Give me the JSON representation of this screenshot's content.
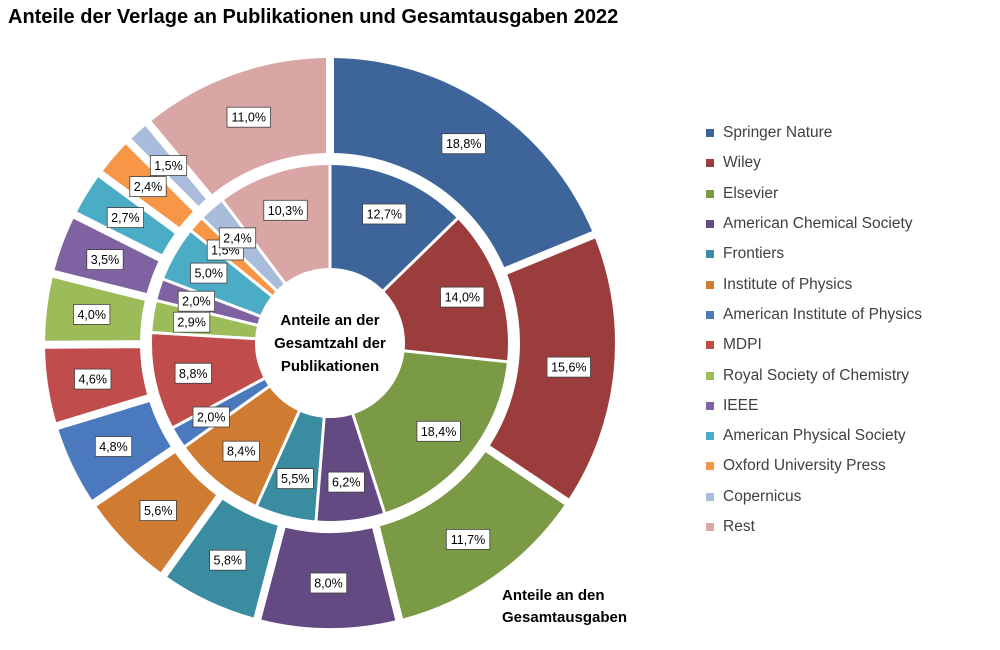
{
  "chart_data": {
    "type": "donut",
    "title": "Anteile der Verlage an Publikationen und Gesamtausgaben 2022",
    "categories": [
      "Springer Nature",
      "Wiley",
      "Elsevier",
      "American Chemical Society",
      "Frontiers",
      "Institute of Physics",
      "American Institute of Physics",
      "MDPI",
      "Royal Society of Chemistry",
      "IEEE",
      "American Physical Society",
      "Oxford University Press",
      "Copernicus",
      "Rest"
    ],
    "colors": [
      "#3e6599",
      "#9b3d3c",
      "#7a9a45",
      "#644a83",
      "#3a8ca1",
      "#d07b32",
      "#4a79bd",
      "#c04c4b",
      "#9cbc59",
      "#7f62a2",
      "#4bacc6",
      "#f79646",
      "#a9bcdb",
      "#d9a5a5"
    ],
    "series": [
      {
        "ring": "inner",
        "values": [
          12.7,
          14.0,
          18.4,
          6.2,
          5.5,
          8.4,
          2.0,
          8.8,
          2.9,
          2.0,
          5.0,
          1.5,
          2.4,
          10.3
        ],
        "labels": [
          "12,7%",
          "14,0%",
          "18,4%",
          "6,2%",
          "5,5%",
          "8,4%",
          "2,0%",
          "8,8%",
          "2,9%",
          "2,0%",
          "5,0%",
          "1,5%",
          "2,4%",
          "10,3%"
        ]
      },
      {
        "ring": "outer",
        "values": [
          18.8,
          15.6,
          11.7,
          8.0,
          5.8,
          5.6,
          4.8,
          4.6,
          4.0,
          3.5,
          2.7,
          2.4,
          1.5,
          11.0
        ],
        "labels": [
          "18,8%",
          "15,6%",
          "11,7%",
          "8,0%",
          "5,8%",
          "5,6%",
          "4,8%",
          "4,6%",
          "4,0%",
          "3,5%",
          "2,7%",
          "2,4%",
          "1,5%",
          "11,0%"
        ]
      }
    ],
    "center_label": [
      "Anteile an der",
      "Gesamtzahl der",
      "Publikationen"
    ],
    "outer_caption": [
      "Anteile an den",
      "Gesamtausgaben"
    ],
    "legend_position": "right"
  }
}
